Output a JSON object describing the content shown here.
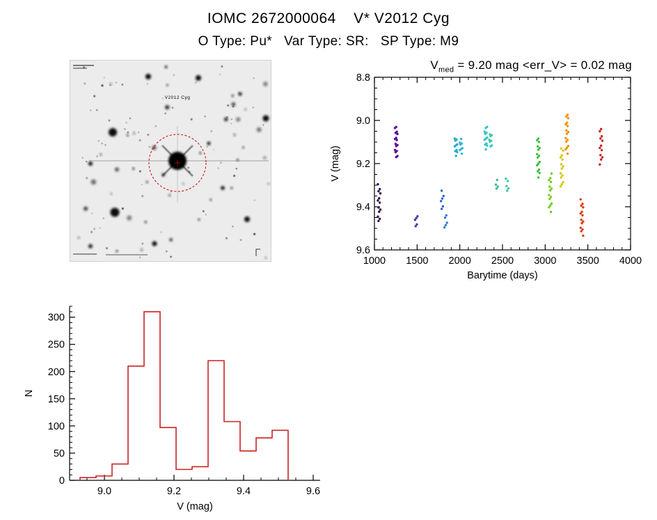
{
  "header": {
    "title": "IOMC 2672000064    V* V2012 Cyg",
    "subtitle": "O Type: Pu*   Var Type: SR:   SP Type: M9"
  },
  "star_chart": {
    "target_label": "V2012 Cyg",
    "marker_color": "#cc0000"
  },
  "chart_data": [
    {
      "id": "light_curve",
      "type": "scatter",
      "title_base": "V",
      "title_sub": "med",
      "title_rest": " = 9.20 mag <err_V> = 0.02 mag",
      "v_median_mag": 9.2,
      "v_err_mean_mag": 0.02,
      "xlabel": "Barytime (days)",
      "ylabel": "V (mag)",
      "xlim": [
        1000,
        4000
      ],
      "ylim": [
        8.8,
        9.6
      ],
      "y_axis_inverted_magnitudes": true,
      "grid": false,
      "legend": "none",
      "xtick_vals": [
        1000,
        1500,
        2000,
        2500,
        3000,
        3500,
        4000
      ],
      "xtick_labels": [
        "1000",
        "1500",
        "2000",
        "2500",
        "3000",
        "3500",
        "4000"
      ],
      "ytick_vals": [
        8.8,
        9.0,
        9.2,
        9.4,
        9.6
      ],
      "ytick_labels": [
        "8.8",
        "9.0",
        "9.2",
        "9.4",
        "9.6"
      ],
      "x_minor_step": 100,
      "y_minor_step": 0.05,
      "clusters": [
        {
          "x": 1055,
          "v_min": 9.3,
          "v_max": 9.47,
          "n": 13,
          "color": "#2b0a4e"
        },
        {
          "x": 1255,
          "v_min": 9.03,
          "v_max": 9.17,
          "n": 16,
          "color": "#56109e"
        },
        {
          "x": 1490,
          "v_min": 9.44,
          "v_max": 9.49,
          "n": 5,
          "color": "#4a35b4"
        },
        {
          "x": 1795,
          "v_min": 9.33,
          "v_max": 9.41,
          "n": 6,
          "color": "#2b62d9"
        },
        {
          "x": 1835,
          "v_min": 9.44,
          "v_max": 9.5,
          "n": 5,
          "color": "#2f7ad9"
        },
        {
          "x": 1955,
          "v_min": 9.08,
          "v_max": 9.16,
          "n": 10,
          "color": "#2aa9cf"
        },
        {
          "x": 2015,
          "v_min": 9.09,
          "v_max": 9.15,
          "n": 8,
          "color": "#2fb7d4"
        },
        {
          "x": 2305,
          "v_min": 9.03,
          "v_max": 9.13,
          "n": 12,
          "color": "#37c4c4"
        },
        {
          "x": 2360,
          "v_min": 9.06,
          "v_max": 9.12,
          "n": 8,
          "color": "#3fcbb0"
        },
        {
          "x": 2430,
          "v_min": 9.28,
          "v_max": 9.32,
          "n": 4,
          "color": "#35bd96"
        },
        {
          "x": 2555,
          "v_min": 9.27,
          "v_max": 9.33,
          "n": 5,
          "color": "#3cc79e"
        },
        {
          "x": 2920,
          "v_min": 9.08,
          "v_max": 9.26,
          "n": 16,
          "color": "#3dc23d"
        },
        {
          "x": 3060,
          "v_min": 9.25,
          "v_max": 9.42,
          "n": 14,
          "color": "#72cc1e"
        },
        {
          "x": 3195,
          "v_min": 9.13,
          "v_max": 9.31,
          "n": 14,
          "color": "#d9c400"
        },
        {
          "x": 3255,
          "v_min": 8.97,
          "v_max": 9.15,
          "n": 16,
          "color": "#f29100"
        },
        {
          "x": 3430,
          "v_min": 9.37,
          "v_max": 9.53,
          "n": 14,
          "color": "#e23c10"
        },
        {
          "x": 3655,
          "v_min": 9.04,
          "v_max": 9.2,
          "n": 12,
          "color": "#c62222"
        }
      ]
    },
    {
      "id": "v_mag_histogram",
      "type": "bar",
      "style": "step-outline",
      "color": "#cc2222",
      "title": "",
      "xlabel": "V (mag)",
      "ylabel": "N",
      "xlim": [
        8.9,
        9.62
      ],
      "ylim": [
        0,
        320
      ],
      "grid": false,
      "xtick_vals": [
        9.0,
        9.2,
        9.4,
        9.6
      ],
      "xtick_labels": [
        "9.0",
        "9.2",
        "9.4",
        "9.6"
      ],
      "ytick_vals": [
        0,
        50,
        100,
        150,
        200,
        250,
        300
      ],
      "ytick_labels": [
        "0",
        "50",
        "100",
        "150",
        "200",
        "250",
        "300"
      ],
      "x_minor_step": 0.05,
      "y_minor_step": 10,
      "bin_edges": [
        8.93,
        8.976,
        9.022,
        9.068,
        9.114,
        9.16,
        9.206,
        9.252,
        9.298,
        9.344,
        9.39,
        9.436,
        9.482,
        9.528
      ],
      "counts": [
        5,
        8,
        30,
        210,
        310,
        97,
        20,
        25,
        220,
        108,
        54,
        78,
        92
      ]
    }
  ]
}
